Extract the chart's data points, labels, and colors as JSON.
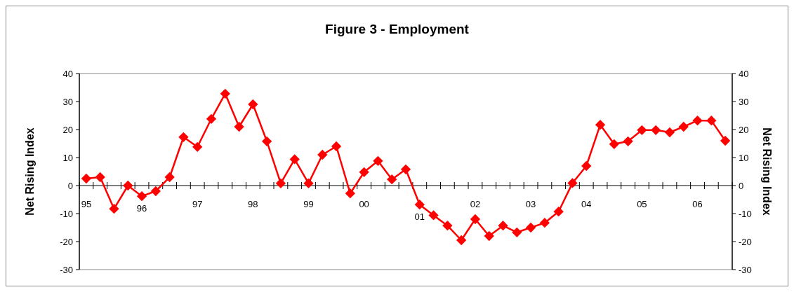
{
  "chart_data": {
    "type": "line",
    "title": "Figure 3 - Employment",
    "ylabel": "Net Rising Index",
    "y2label": "Net Rising Index",
    "categories": [
      "95",
      null,
      null,
      null,
      "96",
      null,
      null,
      null,
      "97",
      null,
      null,
      null,
      "98",
      null,
      null,
      null,
      "99",
      null,
      null,
      null,
      "00",
      null,
      null,
      null,
      "01",
      null,
      null,
      null,
      "02",
      null,
      null,
      null,
      "03",
      null,
      null,
      null,
      "04",
      null,
      null,
      null,
      "05",
      null,
      null,
      null,
      "06",
      null,
      null
    ],
    "series": [
      {
        "color": "#ff0000",
        "values": [
          2.5,
          3,
          -8.3,
          0,
          -3.8,
          -2,
          3,
          17.3,
          13.8,
          23.8,
          32.8,
          21,
          29,
          15.8,
          0.8,
          9.4,
          0.8,
          11,
          14,
          -2.8,
          4.8,
          8.8,
          2.2,
          5.8,
          -6.8,
          -10.6,
          -14.3,
          -19.5,
          -12,
          -18,
          -14.3,
          -16.7,
          -15,
          -13.3,
          -9.3,
          0.9,
          7,
          21.7,
          14.8,
          15.8,
          19.8,
          19.8,
          19,
          21,
          23.2,
          23.2,
          16
        ]
      }
    ],
    "ylim": [
      -30,
      40
    ],
    "yticks": [
      -30,
      -20,
      -10,
      0,
      10,
      20,
      30,
      40
    ],
    "y2lim": [
      -30,
      40
    ],
    "y2ticks": [
      -30,
      -20,
      -10,
      0,
      10,
      20,
      30,
      40
    ],
    "marker": "diamond",
    "line_style": "solid"
  }
}
